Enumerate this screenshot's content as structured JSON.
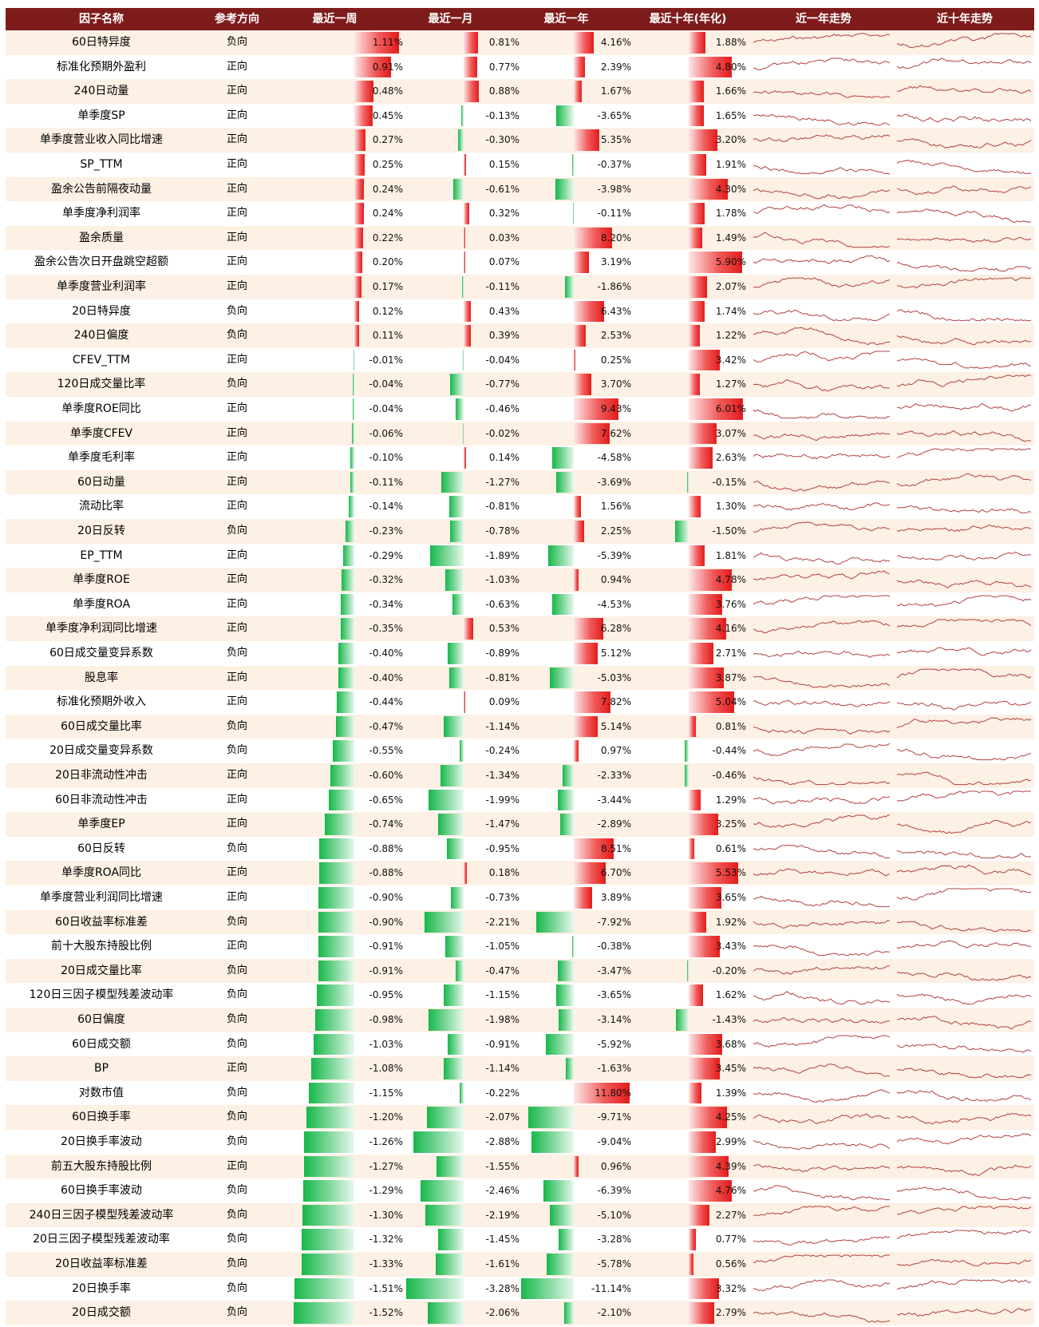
{
  "colors": {
    "header_bg": "#7e1c1c",
    "row_odd": "#fdf0e4",
    "positive": "#e31b1b",
    "negative": "#16b84a",
    "sparkline": "#b34040"
  },
  "headers": [
    "因子名称",
    "参考方向",
    "最近一周",
    "最近一月",
    "最近一年",
    "最近十年(年化)",
    "近一年走势",
    "近十年走势"
  ],
  "chart_data": {
    "type": "table",
    "columns": [
      "最近一周",
      "最近一月",
      "最近一年",
      "最近十年(年化)"
    ],
    "rows": [
      {
        "name": "60日特异度",
        "dir": "负向",
        "week": "1.11%",
        "month": "0.81%",
        "year": "4.16%",
        "decade": "1.88%"
      },
      {
        "name": "标准化预期外盈利",
        "dir": "正向",
        "week": "0.91%",
        "month": "0.77%",
        "year": "2.39%",
        "decade": "4.80%"
      },
      {
        "name": "240日动量",
        "dir": "正向",
        "week": "0.48%",
        "month": "0.88%",
        "year": "1.67%",
        "decade": "1.66%"
      },
      {
        "name": "单季度SP",
        "dir": "正向",
        "week": "0.45%",
        "month": "-0.13%",
        "year": "-3.65%",
        "decade": "1.65%"
      },
      {
        "name": "单季度营业收入同比增速",
        "dir": "正向",
        "week": "0.27%",
        "month": "-0.30%",
        "year": "5.35%",
        "decade": "3.20%"
      },
      {
        "name": "SP_TTM",
        "dir": "正向",
        "week": "0.25%",
        "month": "0.15%",
        "year": "-0.37%",
        "decade": "1.91%"
      },
      {
        "name": "盈余公告前隔夜动量",
        "dir": "正向",
        "week": "0.24%",
        "month": "-0.61%",
        "year": "-3.98%",
        "decade": "4.30%"
      },
      {
        "name": "单季度净利润率",
        "dir": "正向",
        "week": "0.24%",
        "month": "0.32%",
        "year": "-0.11%",
        "decade": "1.78%"
      },
      {
        "name": "盈余质量",
        "dir": "正向",
        "week": "0.22%",
        "month": "0.03%",
        "year": "8.20%",
        "decade": "1.49%"
      },
      {
        "name": "盈余公告次日开盘跳空超额",
        "dir": "正向",
        "week": "0.20%",
        "month": "0.07%",
        "year": "3.19%",
        "decade": "5.90%"
      },
      {
        "name": "单季度营业利润率",
        "dir": "正向",
        "week": "0.17%",
        "month": "-0.11%",
        "year": "-1.86%",
        "decade": "2.07%"
      },
      {
        "name": "20日特异度",
        "dir": "负向",
        "week": "0.12%",
        "month": "0.43%",
        "year": "6.43%",
        "decade": "1.74%"
      },
      {
        "name": "240日偏度",
        "dir": "负向",
        "week": "0.11%",
        "month": "0.39%",
        "year": "2.53%",
        "decade": "1.22%"
      },
      {
        "name": "CFEV_TTM",
        "dir": "正向",
        "week": "-0.01%",
        "month": "-0.04%",
        "year": "0.25%",
        "decade": "3.42%"
      },
      {
        "name": "120日成交量比率",
        "dir": "负向",
        "week": "-0.04%",
        "month": "-0.77%",
        "year": "3.70%",
        "decade": "1.27%"
      },
      {
        "name": "单季度ROE同比",
        "dir": "正向",
        "week": "-0.04%",
        "month": "-0.46%",
        "year": "9.43%",
        "decade": "6.01%"
      },
      {
        "name": "单季度CFEV",
        "dir": "正向",
        "week": "-0.06%",
        "month": "-0.02%",
        "year": "7.62%",
        "decade": "3.07%"
      },
      {
        "name": "单季度毛利率",
        "dir": "正向",
        "week": "-0.10%",
        "month": "0.14%",
        "year": "-4.58%",
        "decade": "2.63%"
      },
      {
        "name": "60日动量",
        "dir": "正向",
        "week": "-0.11%",
        "month": "-1.27%",
        "year": "-3.69%",
        "decade": "-0.15%"
      },
      {
        "name": "流动比率",
        "dir": "正向",
        "week": "-0.14%",
        "month": "-0.81%",
        "year": "1.56%",
        "decade": "1.30%"
      },
      {
        "name": "20日反转",
        "dir": "负向",
        "week": "-0.23%",
        "month": "-0.78%",
        "year": "2.25%",
        "decade": "-1.50%"
      },
      {
        "name": "EP_TTM",
        "dir": "正向",
        "week": "-0.29%",
        "month": "-1.89%",
        "year": "-5.39%",
        "decade": "1.81%"
      },
      {
        "name": "单季度ROE",
        "dir": "正向",
        "week": "-0.32%",
        "month": "-1.03%",
        "year": "0.94%",
        "decade": "4.78%"
      },
      {
        "name": "单季度ROA",
        "dir": "正向",
        "week": "-0.34%",
        "month": "-0.63%",
        "year": "-4.53%",
        "decade": "3.76%"
      },
      {
        "name": "单季度净利润同比增速",
        "dir": "正向",
        "week": "-0.35%",
        "month": "0.53%",
        "year": "6.28%",
        "decade": "4.16%"
      },
      {
        "name": "60日成交量变异系数",
        "dir": "负向",
        "week": "-0.40%",
        "month": "-0.89%",
        "year": "5.12%",
        "decade": "2.71%"
      },
      {
        "name": "股息率",
        "dir": "正向",
        "week": "-0.40%",
        "month": "-0.81%",
        "year": "-5.03%",
        "decade": "3.87%"
      },
      {
        "name": "标准化预期外收入",
        "dir": "正向",
        "week": "-0.44%",
        "month": "0.09%",
        "year": "7.82%",
        "decade": "5.04%"
      },
      {
        "name": "60日成交量比率",
        "dir": "负向",
        "week": "-0.47%",
        "month": "-1.14%",
        "year": "5.14%",
        "decade": "0.81%"
      },
      {
        "name": "20日成交量变异系数",
        "dir": "负向",
        "week": "-0.55%",
        "month": "-0.24%",
        "year": "0.97%",
        "decade": "-0.44%"
      },
      {
        "name": "20日非流动性冲击",
        "dir": "正向",
        "week": "-0.60%",
        "month": "-1.34%",
        "year": "-2.33%",
        "decade": "-0.46%"
      },
      {
        "name": "60日非流动性冲击",
        "dir": "正向",
        "week": "-0.65%",
        "month": "-1.99%",
        "year": "-3.44%",
        "decade": "1.29%"
      },
      {
        "name": "单季度EP",
        "dir": "正向",
        "week": "-0.74%",
        "month": "-1.47%",
        "year": "-2.89%",
        "decade": "3.25%"
      },
      {
        "name": "60日反转",
        "dir": "负向",
        "week": "-0.88%",
        "month": "-0.95%",
        "year": "8.51%",
        "decade": "0.61%"
      },
      {
        "name": "单季度ROA同比",
        "dir": "正向",
        "week": "-0.88%",
        "month": "0.18%",
        "year": "6.70%",
        "decade": "5.53%"
      },
      {
        "name": "单季度营业利润同比增速",
        "dir": "正向",
        "week": "-0.90%",
        "month": "-0.73%",
        "year": "3.89%",
        "decade": "3.65%"
      },
      {
        "name": "60日收益率标准差",
        "dir": "负向",
        "week": "-0.90%",
        "month": "-2.21%",
        "year": "-7.92%",
        "decade": "1.92%"
      },
      {
        "name": "前十大股东持股比例",
        "dir": "正向",
        "week": "-0.91%",
        "month": "-1.05%",
        "year": "-0.38%",
        "decade": "3.43%"
      },
      {
        "name": "20日成交量比率",
        "dir": "负向",
        "week": "-0.91%",
        "month": "-0.47%",
        "year": "-3.47%",
        "decade": "-0.20%"
      },
      {
        "name": "120日三因子模型残差波动率",
        "dir": "负向",
        "week": "-0.95%",
        "month": "-1.15%",
        "year": "-3.65%",
        "decade": "1.62%"
      },
      {
        "name": "60日偏度",
        "dir": "负向",
        "week": "-0.98%",
        "month": "-1.98%",
        "year": "-3.14%",
        "decade": "-1.43%"
      },
      {
        "name": "60日成交额",
        "dir": "负向",
        "week": "-1.03%",
        "month": "-0.91%",
        "year": "-5.92%",
        "decade": "3.68%"
      },
      {
        "name": "BP",
        "dir": "正向",
        "week": "-1.08%",
        "month": "-1.14%",
        "year": "-1.63%",
        "decade": "3.45%"
      },
      {
        "name": "对数市值",
        "dir": "负向",
        "week": "-1.15%",
        "month": "-0.22%",
        "year": "11.80%",
        "decade": "1.39%"
      },
      {
        "name": "60日换手率",
        "dir": "负向",
        "week": "-1.20%",
        "month": "-2.07%",
        "year": "-9.71%",
        "decade": "4.25%"
      },
      {
        "name": "20日换手率波动",
        "dir": "负向",
        "week": "-1.26%",
        "month": "-2.88%",
        "year": "-9.04%",
        "decade": "2.99%"
      },
      {
        "name": "前五大股东持股比例",
        "dir": "正向",
        "week": "-1.27%",
        "month": "-1.55%",
        "year": "0.96%",
        "decade": "4.39%"
      },
      {
        "name": "60日换手率波动",
        "dir": "负向",
        "week": "-1.29%",
        "month": "-2.46%",
        "year": "-6.39%",
        "decade": "4.76%"
      },
      {
        "name": "240日三因子模型残差波动率",
        "dir": "负向",
        "week": "-1.30%",
        "month": "-2.19%",
        "year": "-5.10%",
        "decade": "2.27%"
      },
      {
        "name": "20日三因子模型残差波动率",
        "dir": "负向",
        "week": "-1.32%",
        "month": "-1.45%",
        "year": "-3.28%",
        "decade": "0.77%"
      },
      {
        "name": "20日收益率标准差",
        "dir": "负向",
        "week": "-1.33%",
        "month": "-1.61%",
        "year": "-5.78%",
        "decade": "0.56%"
      },
      {
        "name": "20日换手率",
        "dir": "负向",
        "week": "-1.51%",
        "month": "-3.28%",
        "year": "-11.14%",
        "decade": "3.32%"
      },
      {
        "name": "20日成交额",
        "dir": "负向",
        "week": "-1.52%",
        "month": "-2.06%",
        "year": "-2.10%",
        "decade": "2.79%"
      }
    ]
  }
}
